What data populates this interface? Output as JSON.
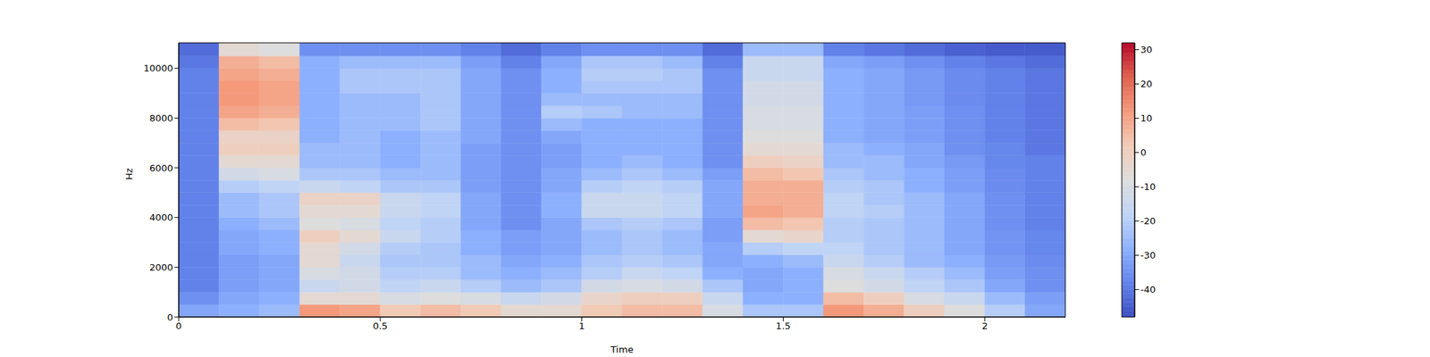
{
  "chart_data": {
    "type": "heatmap",
    "xlabel": "Time",
    "ylabel": "Hz",
    "xlim": [
      0,
      2.2
    ],
    "xticks": [
      0,
      0.5,
      1,
      1.5,
      2
    ],
    "ylim": [
      0,
      11025
    ],
    "yticks": [
      0,
      2000,
      4000,
      6000,
      8000,
      10000
    ],
    "x": [
      0,
      0.1,
      0.2,
      0.3,
      0.4,
      0.5,
      0.6,
      0.7,
      0.8,
      0.9,
      1,
      1.1,
      1.2,
      1.3,
      1.4,
      1.5,
      1.6,
      1.7,
      1.8,
      1.9,
      2,
      2.1
    ],
    "y": [
      0,
      500,
      1000,
      1500,
      2000,
      2500,
      3000,
      3500,
      4000,
      4500,
      5000,
      5500,
      6000,
      6500,
      7000,
      7500,
      8000,
      8500,
      9000,
      9500,
      10000,
      10500
    ],
    "values": [
      [
        -30,
        -28,
        -25,
        12,
        10,
        2,
        5,
        2,
        -5,
        -5,
        2,
        5,
        5,
        -10,
        -22,
        -22,
        12,
        8,
        0,
        -8,
        -20,
        -30
      ],
      [
        -35,
        -30,
        -28,
        -5,
        -5,
        -10,
        -8,
        -10,
        -15,
        -12,
        -3,
        0,
        0,
        -15,
        -28,
        -28,
        5,
        0,
        -10,
        -15,
        -25,
        -32
      ],
      [
        -38,
        -32,
        -30,
        -15,
        -12,
        -18,
        -15,
        -20,
        -25,
        -22,
        -12,
        -10,
        -12,
        -22,
        -30,
        -28,
        -8,
        -12,
        -18,
        -22,
        -30,
        -35
      ],
      [
        -38,
        -32,
        -30,
        -10,
        -12,
        -20,
        -20,
        -25,
        -28,
        -25,
        -20,
        -15,
        -18,
        -28,
        -30,
        -28,
        -10,
        -15,
        -20,
        -25,
        -32,
        -35
      ],
      [
        -38,
        -32,
        -30,
        -5,
        -15,
        -22,
        -22,
        -25,
        -30,
        -28,
        -22,
        -20,
        -22,
        -30,
        -28,
        -25,
        -15,
        -20,
        -25,
        -28,
        -33,
        -36
      ],
      [
        -38,
        -30,
        -28,
        -5,
        -12,
        -20,
        -22,
        -28,
        -32,
        -30,
        -25,
        -22,
        -25,
        -30,
        -20,
        -18,
        -18,
        -22,
        -25,
        -30,
        -34,
        -37
      ],
      [
        -38,
        -30,
        -28,
        0,
        -5,
        -15,
        -20,
        -28,
        -32,
        -30,
        -25,
        -22,
        -25,
        -32,
        -5,
        -3,
        -20,
        -22,
        -25,
        -30,
        -34,
        -37
      ],
      [
        -38,
        -28,
        -25,
        -8,
        -10,
        -18,
        -20,
        -30,
        -35,
        -30,
        -22,
        -20,
        -22,
        -32,
        5,
        3,
        -20,
        -22,
        -25,
        -30,
        -35,
        -38
      ],
      [
        -38,
        -25,
        -22,
        -5,
        -5,
        -15,
        -18,
        -30,
        -35,
        -28,
        -15,
        -15,
        -18,
        -30,
        10,
        8,
        -18,
        -20,
        -25,
        -30,
        -35,
        -38
      ],
      [
        -38,
        -25,
        -22,
        -2,
        -2,
        -15,
        -18,
        -30,
        -35,
        -28,
        -15,
        -15,
        -18,
        -30,
        8,
        8,
        -18,
        -22,
        -25,
        -30,
        -35,
        -38
      ],
      [
        -38,
        -20,
        -18,
        -15,
        -18,
        -22,
        -22,
        -32,
        -35,
        -30,
        -20,
        -18,
        -20,
        -30,
        8,
        8,
        -20,
        -22,
        -28,
        -32,
        -36,
        -38
      ],
      [
        -38,
        -12,
        -10,
        -22,
        -22,
        -25,
        -25,
        -32,
        -35,
        -30,
        -25,
        -22,
        -25,
        -32,
        5,
        3,
        -22,
        -25,
        -28,
        -32,
        -36,
        -38
      ],
      [
        -38,
        -5,
        -5,
        -25,
        -25,
        -28,
        -25,
        -32,
        -35,
        -32,
        -28,
        -25,
        -28,
        -35,
        0,
        -2,
        -25,
        -25,
        -30,
        -33,
        -37,
        -38
      ],
      [
        -38,
        0,
        0,
        -25,
        -25,
        -28,
        -25,
        -32,
        -35,
        -32,
        -28,
        -28,
        -28,
        -35,
        -5,
        -5,
        -25,
        -28,
        -30,
        -35,
        -37,
        -40
      ],
      [
        -38,
        -2,
        -2,
        -28,
        -25,
        -28,
        -25,
        -30,
        -35,
        -30,
        -28,
        -28,
        -28,
        -35,
        -8,
        -8,
        -28,
        -30,
        -32,
        -35,
        -38,
        -40
      ],
      [
        -38,
        5,
        3,
        -28,
        -25,
        -25,
        -22,
        -30,
        -35,
        -25,
        -28,
        -28,
        -28,
        -35,
        -10,
        -10,
        -28,
        -30,
        -32,
        -35,
        -38,
        -40
      ],
      [
        -38,
        10,
        8,
        -28,
        -25,
        -25,
        -22,
        -30,
        -35,
        -20,
        -22,
        -25,
        -25,
        -35,
        -10,
        -10,
        -28,
        -30,
        -32,
        -35,
        -38,
        -40
      ],
      [
        -38,
        12,
        10,
        -28,
        -25,
        -25,
        -22,
        -30,
        -35,
        -25,
        -25,
        -25,
        -25,
        -35,
        -12,
        -12,
        -28,
        -30,
        -33,
        -36,
        -38,
        -40
      ],
      [
        -38,
        12,
        10,
        -28,
        -22,
        -22,
        -22,
        -30,
        -35,
        -28,
        -22,
        -22,
        -22,
        -35,
        -12,
        -12,
        -28,
        -30,
        -33,
        -36,
        -38,
        -40
      ],
      [
        -38,
        10,
        8,
        -28,
        -22,
        -22,
        -22,
        -30,
        -35,
        -28,
        -20,
        -20,
        -22,
        -35,
        -15,
        -15,
        -28,
        -30,
        -33,
        -36,
        -38,
        -40
      ],
      [
        -40,
        8,
        5,
        -28,
        -25,
        -25,
        -25,
        -32,
        -38,
        -30,
        -22,
        -22,
        -25,
        -38,
        -15,
        -15,
        -30,
        -32,
        -35,
        -38,
        -40,
        -42
      ],
      [
        -42,
        -5,
        -8,
        -35,
        -35,
        -35,
        -35,
        -38,
        -42,
        -38,
        -35,
        -35,
        -35,
        -42,
        -25,
        -25,
        -38,
        -40,
        -42,
        -44,
        -45,
        -45
      ]
    ],
    "colorbar": {
      "range": [
        -48,
        32
      ],
      "ticks": [
        -40,
        -30,
        -20,
        -10,
        0,
        10,
        20,
        30
      ]
    }
  }
}
